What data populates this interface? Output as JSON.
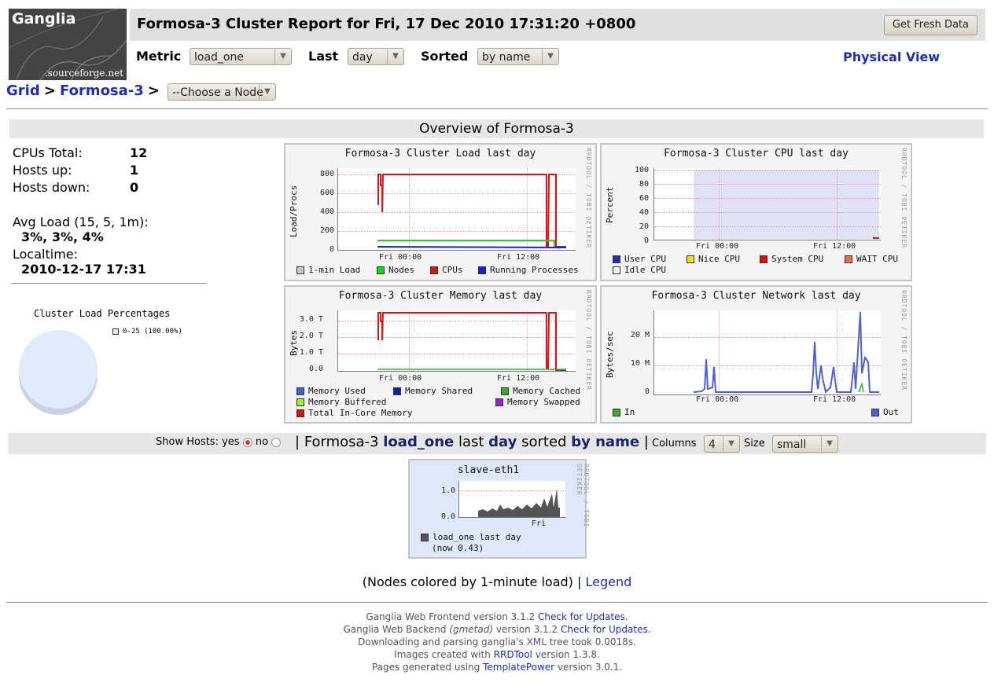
{
  "logo": {
    "brand": "Ganglia",
    "sub": ".sourceforge.net"
  },
  "header": {
    "title": "Formosa-3 Cluster Report for Fri, 17 Dec 2010 17:31:20 +0800",
    "fresh_label": "Get Fresh Data",
    "metric_label": "Metric",
    "metric_value": "load_one",
    "last_label": "Last",
    "last_value": "day",
    "sorted_label": "Sorted",
    "sorted_value": "by name",
    "physical_view": "Physical View"
  },
  "breadcrumb": {
    "grid": "Grid",
    "sep": ">",
    "cluster": "Formosa-3",
    "node_select": "--Choose a Node"
  },
  "overview": {
    "title": "Overview of Formosa-3",
    "cpus_label": "CPUs Total:",
    "cpus_value": "12",
    "hosts_up_label": "Hosts up:",
    "hosts_up_value": "1",
    "hosts_down_label": "Hosts down:",
    "hosts_down_value": "0",
    "avg_load_label": "Avg Load (15, 5, 1m):",
    "avg_load_value": "3%, 3%, 4%",
    "localtime_label": "Localtime:",
    "localtime_value": "2010-12-17 17:31",
    "pie_title": "Cluster Load Percentages",
    "pie_legend": "0-25 (100.00%)",
    "pie_color": "#e2ebfb"
  },
  "graphs": {
    "rrd_credit": "RRDTOOL / TOBI OETIKER",
    "load": {
      "title": "Formosa-3 Cluster Load last day",
      "ylabel": "Load/Procs",
      "yticks": [
        "800",
        "600",
        "400",
        "200",
        "0"
      ],
      "xticks": [
        "Fri 00:00",
        "Fri 12:00"
      ],
      "legend": [
        {
          "label": "1-min Load",
          "color": "#c8c8c8"
        },
        {
          "label": "Nodes",
          "color": "#18d818"
        },
        {
          "label": "CPUs",
          "color": "#e01010"
        },
        {
          "label": "Running Processes",
          "color": "#1020e0"
        }
      ]
    },
    "cpu": {
      "title": "Formosa-3 Cluster CPU last day",
      "ylabel": "Percent",
      "yticks": [
        "100",
        "80",
        "60",
        "40",
        "20",
        "0"
      ],
      "xticks": [
        "Fri 00:00",
        "Fri 12:00"
      ],
      "legend": [
        {
          "label": "User CPU",
          "color": "#2030b0"
        },
        {
          "label": "Nice CPU",
          "color": "#f0e010"
        },
        {
          "label": "System CPU",
          "color": "#e01010"
        },
        {
          "label": "WAIT CPU",
          "color": "#f07050"
        },
        {
          "label": "Idle CPU",
          "color": "#f4f4f4"
        }
      ]
    },
    "memory": {
      "title": "Formosa-3 Cluster Memory last day",
      "ylabel": "Bytes",
      "yticks": [
        "3.0 T",
        "2.0 T",
        "1.0 T",
        "0.0"
      ],
      "xticks": [
        "Fri 00:00",
        "Fri 12:00"
      ],
      "legend": [
        {
          "label": "Memory Used",
          "color": "#5060d0"
        },
        {
          "label": "Memory Shared",
          "color": "#1020a0"
        },
        {
          "label": "Memory Cached",
          "color": "#30b030"
        },
        {
          "label": "Memory Buffered",
          "color": "#a0f030"
        },
        {
          "label": "Memory Swapped",
          "color": "#a020d0"
        },
        {
          "label": "Total In-Core Memory",
          "color": "#e01010"
        }
      ]
    },
    "network": {
      "title": "Formosa-3 Cluster Network last day",
      "ylabel": "Bytes/sec",
      "yticks": [
        "20 M",
        "10 M",
        "0"
      ],
      "xticks": [
        "Fri 00:00",
        "Fri 12:00"
      ],
      "legend": [
        {
          "label": "In",
          "color": "#30b030"
        },
        {
          "label": "Out",
          "color": "#5060d0"
        }
      ]
    }
  },
  "hosts_bar": {
    "show_hosts": "Show Hosts:",
    "yes": "yes",
    "no": "no",
    "pipe": "|",
    "cluster": "Formosa-3",
    "metric": "load_one",
    "last": "last",
    "range": "day",
    "sorted": "sorted",
    "sort_value": "by name",
    "columns_label": "Columns",
    "columns_value": "4",
    "size_label": "Size",
    "size_value": "small"
  },
  "host_graph": {
    "title": "slave-eth1",
    "yticks": [
      "1.0",
      "0.0"
    ],
    "xtick": "Fri",
    "legend": "load_one last day",
    "now": "(now 0.43)",
    "bg_color": "#dde8fa"
  },
  "nodes_note": {
    "text": "(Nodes colored by 1-minute load) |",
    "legend_link": "Legend"
  },
  "footer": {
    "line1": "Ganglia Web Frontend version 3.1.2",
    "line1_link": "Check for Updates.",
    "line2a": "Ganglia Web Backend",
    "line2b": "(gmetad)",
    "line2c": "version 3.1.2",
    "line2_link": "Check for Updates.",
    "line3": "Downloading and parsing ganglia's XML tree took 0.0018s.",
    "line4a": "Images created with",
    "line4_link": "RRDTool",
    "line4b": "version 1.3.8.",
    "line5a": "Pages generated using",
    "line5_link": "TemplatePower",
    "line5b": "version 3.0.1."
  }
}
